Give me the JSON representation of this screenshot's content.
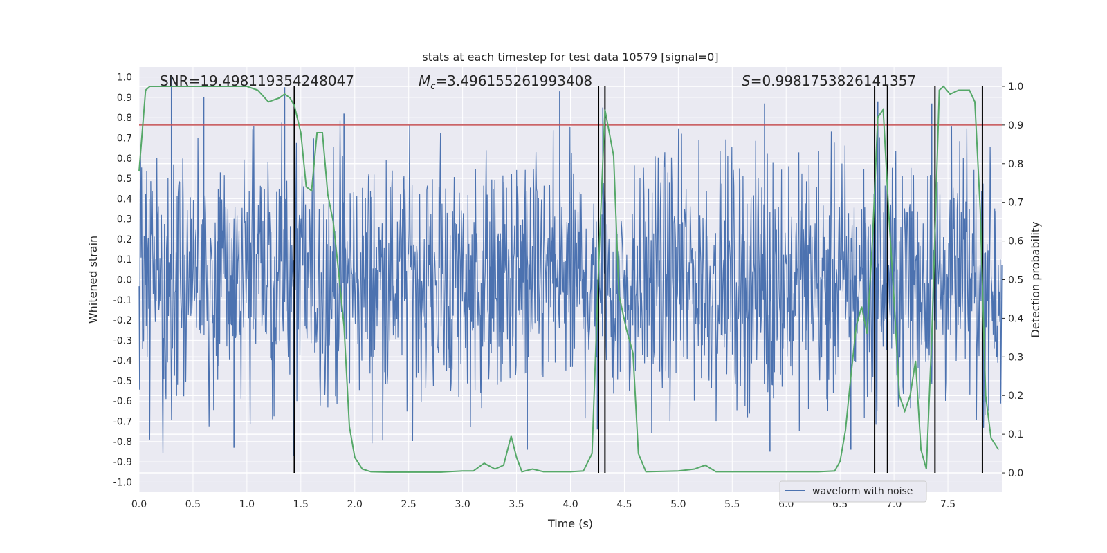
{
  "chart_data": {
    "type": "line",
    "title": "stats at each timestep for test data 10579 [signal=0]",
    "xlabel": "Time (s)",
    "ylabel": "Whitened strain",
    "y2label": "Detection probability",
    "xlim": [
      0,
      8
    ],
    "ylim": [
      -1.05,
      1.05
    ],
    "y2lim": [
      -0.05,
      1.05
    ],
    "xticks": [
      "0.0",
      "0.5",
      "1.0",
      "1.5",
      "2.0",
      "2.5",
      "3.0",
      "3.5",
      "4.0",
      "4.5",
      "5.0",
      "5.5",
      "6.0",
      "6.5",
      "7.0",
      "7.5"
    ],
    "yticks": [
      "-1.0",
      "-0.9",
      "-0.8",
      "-0.7",
      "-0.6",
      "-0.5",
      "-0.4",
      "-0.3",
      "-0.2",
      "-0.1",
      "0.0",
      "0.1",
      "0.2",
      "0.3",
      "0.4",
      "0.5",
      "0.6",
      "0.7",
      "0.8",
      "0.9",
      "1.0"
    ],
    "y2ticks": [
      "0.0",
      "0.1",
      "0.2",
      "0.3",
      "0.4",
      "0.5",
      "0.6",
      "0.7",
      "0.8",
      "0.9",
      "1.0"
    ],
    "grid": true,
    "legend_position": "bottom-right",
    "annotations": {
      "snr": "SNR=19.498119354248047",
      "mc_symbol": "M",
      "mc_sub": "c",
      "mc_value": "=3.496155261993408",
      "s_symbol": "S",
      "s_value": "=0.9981753826141357"
    },
    "threshold": 0.9,
    "vertical_lines": [
      1.44,
      4.26,
      4.32,
      6.82,
      6.94,
      7.38,
      7.82
    ],
    "series": [
      {
        "name": "waveform with noise",
        "color": "#4c72b0",
        "noise_amplitude": 0.3,
        "peaks": [
          [
            0.3,
            1.0
          ],
          [
            0.6,
            0.9
          ],
          [
            1.35,
            0.95
          ],
          [
            1.9,
            0.82
          ],
          [
            3.9,
            0.93
          ],
          [
            4.3,
            0.85
          ],
          [
            5.8,
            0.87
          ],
          [
            6.85,
            0.88
          ],
          [
            7.35,
            0.87
          ],
          [
            1.43,
            -0.87
          ],
          [
            0.88,
            -0.83
          ],
          [
            3.6,
            -0.84
          ],
          [
            4.25,
            -0.74
          ],
          [
            5.85,
            -0.85
          ],
          [
            6.6,
            -0.84
          ]
        ]
      },
      {
        "color": "#55a868",
        "axis": "secondary",
        "x": [
          0.0,
          0.06,
          0.1,
          0.2,
          0.4,
          0.6,
          0.8,
          1.0,
          1.1,
          1.2,
          1.3,
          1.35,
          1.4,
          1.44,
          1.5,
          1.55,
          1.6,
          1.65,
          1.7,
          1.75,
          1.8,
          1.85,
          1.9,
          1.95,
          2.0,
          2.07,
          2.15,
          2.3,
          2.5,
          2.8,
          3.0,
          3.1,
          3.2,
          3.3,
          3.38,
          3.45,
          3.5,
          3.55,
          3.65,
          3.75,
          3.85,
          4.0,
          4.12,
          4.2,
          4.27,
          4.32,
          4.4,
          4.45,
          4.52,
          4.58,
          4.63,
          4.7,
          5.0,
          5.15,
          5.25,
          5.35,
          5.6,
          6.3,
          6.45,
          6.5,
          6.55,
          6.6,
          6.65,
          6.7,
          6.75,
          6.8,
          6.85,
          6.9,
          6.95,
          7.0,
          7.05,
          7.1,
          7.15,
          7.2,
          7.25,
          7.3,
          7.35,
          7.38,
          7.42,
          7.46,
          7.52,
          7.6,
          7.65,
          7.7,
          7.75,
          7.8,
          7.85,
          7.9,
          7.97
        ],
        "values": [
          0.78,
          0.99,
          1.0,
          1.0,
          1.0,
          1.0,
          1.0,
          1.0,
          0.99,
          0.96,
          0.97,
          0.98,
          0.97,
          0.95,
          0.88,
          0.74,
          0.73,
          0.88,
          0.88,
          0.72,
          0.65,
          0.52,
          0.38,
          0.12,
          0.04,
          0.01,
          0.003,
          0.002,
          0.002,
          0.002,
          0.005,
          0.005,
          0.025,
          0.01,
          0.02,
          0.095,
          0.04,
          0.003,
          0.01,
          0.003,
          0.003,
          0.003,
          0.005,
          0.05,
          0.6,
          0.94,
          0.82,
          0.46,
          0.37,
          0.31,
          0.05,
          0.003,
          0.005,
          0.01,
          0.02,
          0.003,
          0.003,
          0.003,
          0.005,
          0.03,
          0.11,
          0.25,
          0.38,
          0.43,
          0.36,
          0.6,
          0.92,
          0.94,
          0.68,
          0.45,
          0.2,
          0.16,
          0.2,
          0.29,
          0.06,
          0.01,
          0.35,
          0.62,
          0.99,
          1.0,
          0.98,
          0.99,
          0.99,
          0.99,
          0.96,
          0.68,
          0.2,
          0.09,
          0.06
        ]
      }
    ]
  }
}
